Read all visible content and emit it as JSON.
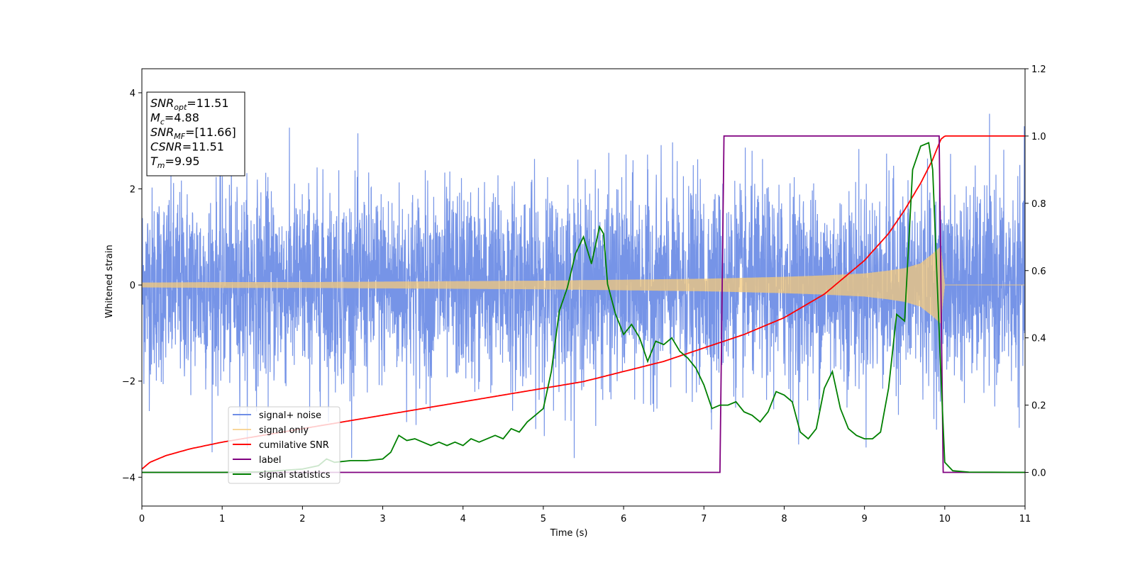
{
  "chart_data": {
    "type": "line",
    "xlabel": "Time (s)",
    "ylabel": "Whitened strain",
    "xlim": [
      0,
      11
    ],
    "ylim": [
      -4.6,
      4.5
    ],
    "y2lim": [
      -0.1,
      1.2
    ],
    "x_ticks": [
      "0",
      "1",
      "2",
      "3",
      "4",
      "5",
      "6",
      "7",
      "8",
      "9",
      "10",
      "11"
    ],
    "y_ticks": [
      "-4",
      "-2",
      "0",
      "2",
      "4"
    ],
    "y2_ticks": [
      "0.0",
      "0.2",
      "0.4",
      "0.6",
      "0.8",
      "1.0",
      "1.2"
    ],
    "grid": false,
    "legend_position": "lower-left",
    "annotation": {
      "lines": [
        {
          "sym": "SNR",
          "sub": "opt",
          "val": "=11.51"
        },
        {
          "sym": "M",
          "sub": "c",
          "val": "=4.88"
        },
        {
          "sym": "SNR",
          "sub": "MF",
          "val": "=[11.66]"
        },
        {
          "sym": "CSNR",
          "sub": "",
          "val": "=11.51"
        },
        {
          "sym": "T",
          "sub": "m",
          "val": "=9.95"
        }
      ]
    },
    "series": [
      {
        "name": "signal+ noise",
        "color": "#6f8ee6",
        "axis": "left",
        "description_values": {
          "noise_std": 1.0,
          "max": 4.1,
          "min": -3.6
        }
      },
      {
        "name": "signal only",
        "color": "#f5c97a",
        "axis": "left",
        "envelope": {
          "x": [
            0,
            1,
            2,
            3,
            4,
            5,
            6,
            7,
            8,
            8.5,
            9,
            9.3,
            9.5,
            9.7,
            9.85,
            9.95,
            10,
            11
          ],
          "amp": [
            0.05,
            0.06,
            0.06,
            0.07,
            0.08,
            0.09,
            0.11,
            0.13,
            0.17,
            0.2,
            0.24,
            0.3,
            0.35,
            0.45,
            0.65,
            0.8,
            0,
            0
          ]
        }
      },
      {
        "name": "cumilative SNR",
        "color": "#ff0000",
        "axis": "right",
        "x": [
          0,
          0.1,
          0.3,
          0.6,
          1,
          1.5,
          2,
          2.5,
          3,
          3.5,
          4,
          4.5,
          5,
          5.5,
          6,
          6.5,
          7,
          7.5,
          8,
          8.5,
          9,
          9.3,
          9.5,
          9.7,
          9.85,
          9.95,
          10,
          11
        ],
        "values": [
          0.01,
          0.03,
          0.05,
          0.07,
          0.09,
          0.11,
          0.13,
          0.15,
          0.17,
          0.19,
          0.21,
          0.23,
          0.25,
          0.27,
          0.3,
          0.33,
          0.37,
          0.41,
          0.46,
          0.53,
          0.63,
          0.71,
          0.78,
          0.86,
          0.93,
          0.99,
          1.0,
          1.0
        ]
      },
      {
        "name": "label",
        "color": "#800080",
        "axis": "right",
        "x": [
          0,
          7.2,
          7.25,
          9.93,
          9.98,
          11
        ],
        "values": [
          0,
          0,
          1,
          1,
          0,
          0
        ]
      },
      {
        "name": "signal statistics",
        "color": "#008000",
        "axis": "right",
        "x": [
          0,
          1,
          1.5,
          2,
          2.2,
          2.3,
          2.4,
          2.6,
          2.8,
          3,
          3.1,
          3.2,
          3.3,
          3.4,
          3.5,
          3.6,
          3.7,
          3.8,
          3.9,
          4,
          4.1,
          4.2,
          4.3,
          4.4,
          4.5,
          4.6,
          4.7,
          4.8,
          4.9,
          5,
          5.1,
          5.2,
          5.3,
          5.4,
          5.5,
          5.6,
          5.7,
          5.75,
          5.8,
          5.9,
          6,
          6.1,
          6.2,
          6.3,
          6.4,
          6.5,
          6.6,
          6.7,
          6.8,
          6.9,
          7,
          7.1,
          7.2,
          7.3,
          7.4,
          7.5,
          7.6,
          7.7,
          7.8,
          7.9,
          8,
          8.1,
          8.2,
          8.3,
          8.4,
          8.5,
          8.6,
          8.7,
          8.8,
          8.9,
          9,
          9.1,
          9.2,
          9.3,
          9.4,
          9.5,
          9.6,
          9.7,
          9.8,
          9.85,
          9.9,
          9.95,
          10,
          10.1,
          10.3,
          11
        ],
        "values": [
          0,
          0,
          0.002,
          0.01,
          0.02,
          0.04,
          0.03,
          0.035,
          0.035,
          0.04,
          0.06,
          0.11,
          0.095,
          0.1,
          0.09,
          0.08,
          0.09,
          0.08,
          0.09,
          0.08,
          0.1,
          0.09,
          0.1,
          0.11,
          0.1,
          0.13,
          0.12,
          0.15,
          0.17,
          0.19,
          0.3,
          0.48,
          0.55,
          0.65,
          0.7,
          0.62,
          0.73,
          0.71,
          0.56,
          0.47,
          0.41,
          0.44,
          0.4,
          0.33,
          0.39,
          0.38,
          0.4,
          0.36,
          0.34,
          0.31,
          0.26,
          0.19,
          0.2,
          0.2,
          0.21,
          0.18,
          0.17,
          0.15,
          0.18,
          0.24,
          0.23,
          0.21,
          0.12,
          0.1,
          0.13,
          0.25,
          0.3,
          0.19,
          0.13,
          0.11,
          0.1,
          0.1,
          0.12,
          0.25,
          0.47,
          0.45,
          0.9,
          0.97,
          0.98,
          0.9,
          0.6,
          0.3,
          0.03,
          0.005,
          0.001,
          0
        ]
      }
    ]
  }
}
